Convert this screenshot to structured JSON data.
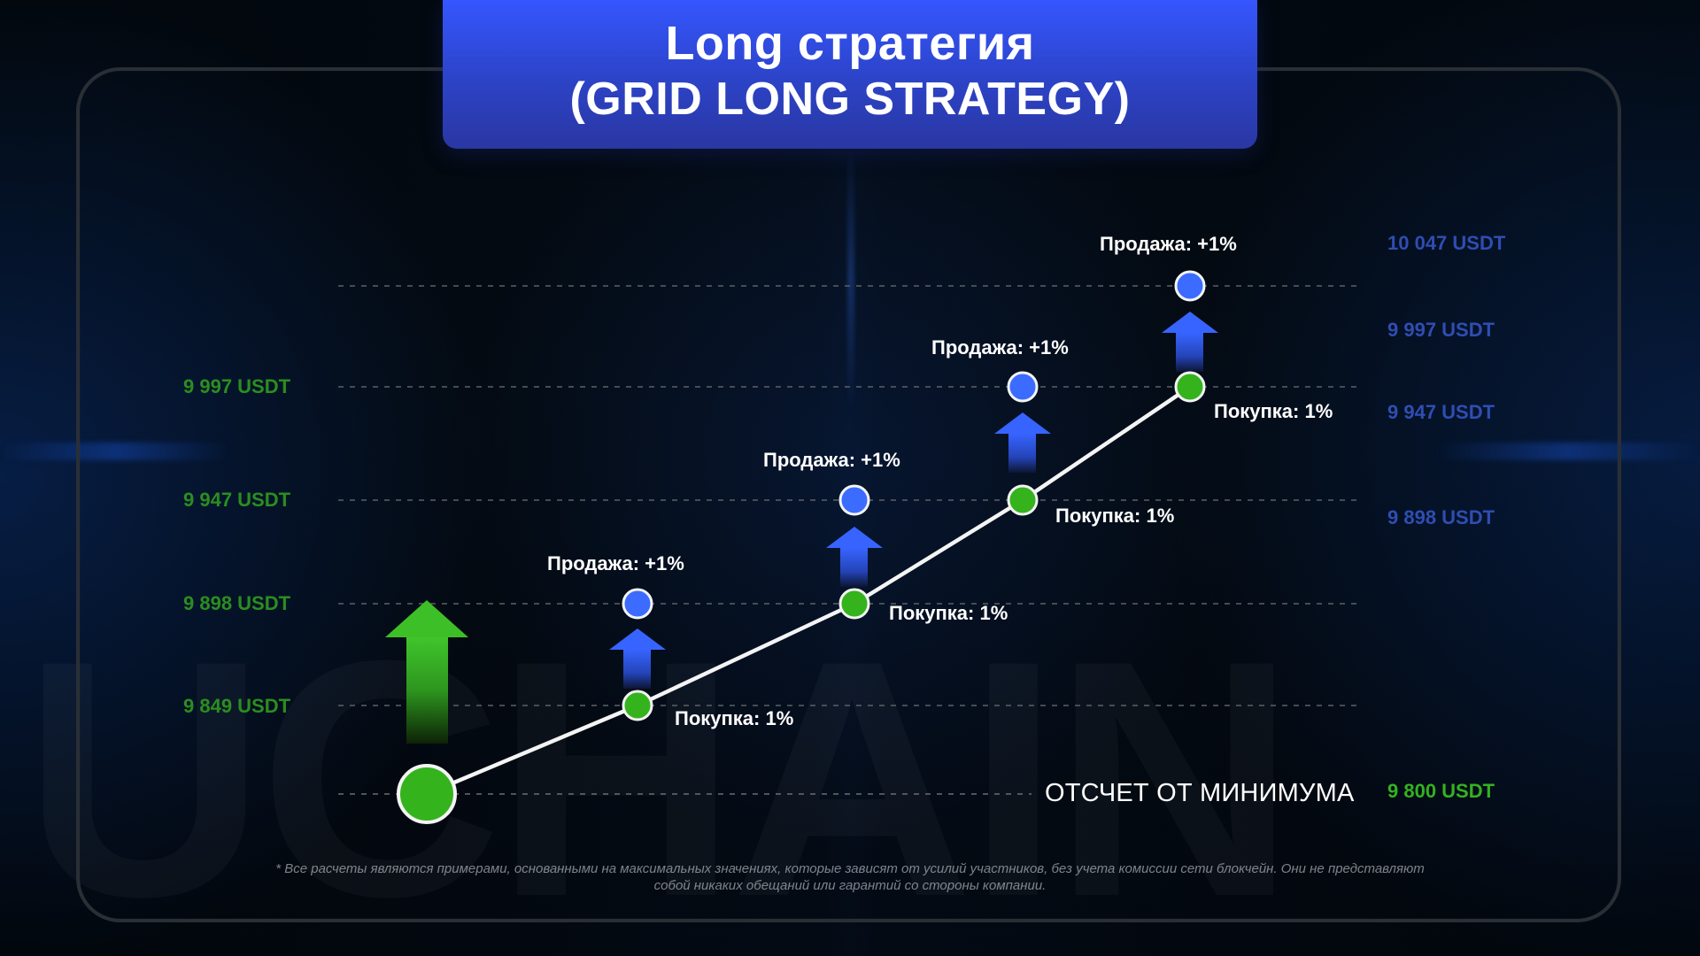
{
  "header": {
    "title_line_1": "Long стратегия",
    "title_line_2": "(GRID LONG STRATEGY)"
  },
  "watermark": {
    "text": "UCHAIN"
  },
  "baseline": {
    "label": "ОТСЧЕТ ОТ МИНИМУМА"
  },
  "left_axis_labels": [
    "9 997 USDT",
    "9 947 USDT",
    "9 898 USDT",
    "9 849 USDT"
  ],
  "right_axis_labels": [
    "10 047 USDT",
    "9 997 USDT",
    "9 947 USDT",
    "9 898 USDT",
    "9 800 USDT"
  ],
  "events": {
    "sells": [
      "Продажа: +1%",
      "Продажа: +1%",
      "Продажа: +1%",
      "Продажа: +1%"
    ],
    "buys": [
      "Покупка: 1%",
      "Покупка: 1%",
      "Покупка: 1%",
      "Покупка: 1%"
    ]
  },
  "disclaimer": {
    "text": "* Все расчеты являются примерами, основанными на максимальных значениях, которые зависят от усилий участников, без учета комиссии сети блокчейн. Они не представляют собой никаких обещаний или гарантий со стороны компании."
  },
  "colors": {
    "title_blue": "#3556ff",
    "line_white": "#ffffff",
    "buy_green": "#34b31d",
    "sell_blue": "#3b6cff",
    "axis_green": "#2a8e1f",
    "axis_blue": "#2f4db2"
  },
  "icons": {
    "start_arrow": "up-arrow-icon",
    "sell_arrow": "up-arrow-icon"
  }
}
